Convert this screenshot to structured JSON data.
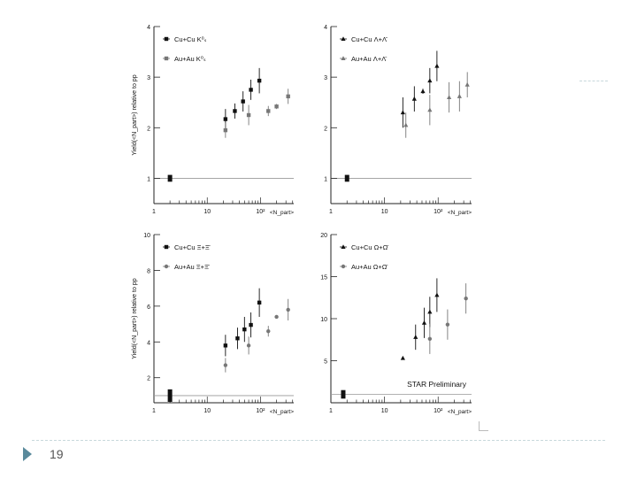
{
  "page": {
    "number": "19"
  },
  "y_axis_label": "Yield(<N_part>) relative to pp",
  "x_axis_label": "<N_part>",
  "chart_data": [
    {
      "type": "scatter",
      "panel": "top-left",
      "xscale": "log",
      "xlim": [
        1,
        420
      ],
      "ylim": [
        0.5,
        4
      ],
      "xticks": [
        {
          "v": 1,
          "t": "1"
        },
        {
          "v": 10,
          "t": "10"
        },
        {
          "v": 100,
          "t": "10²"
        }
      ],
      "yticks": [
        1,
        2,
        3,
        4
      ],
      "legend_placement": "top-left",
      "reference_line": 1,
      "pp_point": {
        "x": 2,
        "y": 1,
        "half_height": 0.05
      },
      "series": [
        {
          "name": "Cu+Cu K⁰ₛ",
          "color": "#111111",
          "marker": "square",
          "points": [
            [
              22,
              2.17,
              0.2
            ],
            [
              33,
              2.33,
              0.15
            ],
            [
              47,
              2.52,
              0.2
            ],
            [
              66,
              2.75,
              0.2
            ],
            [
              95,
              2.93,
              0.25
            ]
          ]
        },
        {
          "name": "Au+Au K⁰ₛ",
          "color": "#777777",
          "marker": "square",
          "points": [
            [
              22,
              1.95,
              0.15
            ],
            [
              60,
              2.25,
              0.2
            ],
            [
              140,
              2.33,
              0.1
            ],
            [
              200,
              2.42,
              0.05
            ],
            [
              330,
              2.62,
              0.15
            ]
          ]
        }
      ]
    },
    {
      "type": "scatter",
      "panel": "top-right",
      "xscale": "log",
      "xlim": [
        1,
        420
      ],
      "ylim": [
        0.5,
        4
      ],
      "xticks": [
        {
          "v": 1,
          "t": "1"
        },
        {
          "v": 10,
          "t": "10"
        },
        {
          "v": 100,
          "t": "10²"
        }
      ],
      "yticks": [
        1,
        2,
        3,
        4
      ],
      "legend_placement": "top-left",
      "reference_line": 1,
      "pp_point": {
        "x": 2,
        "y": 1,
        "half_height": 0.05
      },
      "series": [
        {
          "name": "Cu+Cu Λ+Λ̄",
          "color": "#111111",
          "marker": "triangle",
          "points": [
            [
              22,
              2.3,
              0.3
            ],
            [
              36,
              2.57,
              0.25
            ],
            [
              52,
              2.72,
              0.05
            ],
            [
              70,
              2.93,
              0.25
            ],
            [
              95,
              3.22,
              0.3
            ]
          ]
        },
        {
          "name": "Au+Au Λ+Λ̄",
          "color": "#777777",
          "marker": "triangle",
          "points": [
            [
              25,
              2.05,
              0.25
            ],
            [
              70,
              2.35,
              0.3
            ],
            [
              160,
              2.6,
              0.3
            ],
            [
              250,
              2.62,
              0.3
            ],
            [
              350,
              2.85,
              0.25
            ]
          ]
        }
      ]
    },
    {
      "type": "scatter",
      "panel": "bottom-left",
      "xscale": "log",
      "xlim": [
        1,
        420
      ],
      "ylim": [
        0.6,
        10
      ],
      "xticks": [
        {
          "v": 1,
          "t": "1"
        },
        {
          "v": 10,
          "t": "10"
        },
        {
          "v": 100,
          "t": "10²"
        }
      ],
      "yticks": [
        2,
        4,
        6,
        8,
        10
      ],
      "legend_placement": "top-left",
      "reference_line": 1,
      "pp_point": {
        "x": 2,
        "y": 1,
        "half_height": 0.3
      },
      "series": [
        {
          "name": "Cu+Cu Ξ+Ξ̄",
          "color": "#111111",
          "marker": "square",
          "points": [
            [
              22,
              3.8,
              0.6
            ],
            [
              37,
              4.2,
              0.6
            ],
            [
              50,
              4.7,
              0.7
            ],
            [
              66,
              4.95,
              0.7
            ],
            [
              95,
              6.2,
              0.8
            ]
          ]
        },
        {
          "name": "Au+Au Ξ+Ξ̄",
          "color": "#777777",
          "marker": "circle",
          "points": [
            [
              22,
              2.7,
              0.4
            ],
            [
              60,
              3.8,
              0.5
            ],
            [
              140,
              4.6,
              0.3
            ],
            [
              200,
              5.4,
              0.1
            ],
            [
              330,
              5.8,
              0.6
            ]
          ]
        }
      ]
    },
    {
      "type": "scatter",
      "panel": "bottom-right",
      "xscale": "log",
      "xlim": [
        1,
        420
      ],
      "ylim": [
        0,
        20
      ],
      "xticks": [
        {
          "v": 1,
          "t": "1"
        },
        {
          "v": 10,
          "t": "10"
        },
        {
          "v": 100,
          "t": "10²"
        }
      ],
      "yticks": [
        5,
        10,
        15,
        20
      ],
      "legend_placement": "top-left",
      "annotation": "STAR Preliminary",
      "reference_line": 1,
      "pp_point": {
        "x": 1.7,
        "y": 1,
        "half_height": 0.4
      },
      "series": [
        {
          "name": "Cu+Cu Ω+Ω̄",
          "color": "#111111",
          "marker": "triangle",
          "points": [
            [
              22,
              5.3,
              0.2
            ],
            [
              38,
              7.8,
              1.5
            ],
            [
              55,
              9.5,
              1.8
            ],
            [
              70,
              10.8,
              1.8
            ],
            [
              95,
              12.8,
              2.0
            ]
          ]
        },
        {
          "name": "Au+Au Ω+Ω̄",
          "color": "#777777",
          "marker": "circle",
          "points": [
            [
              70,
              7.6,
              1.8
            ],
            [
              150,
              9.3,
              1.8
            ],
            [
              330,
              12.4,
              1.8
            ]
          ]
        }
      ]
    }
  ]
}
